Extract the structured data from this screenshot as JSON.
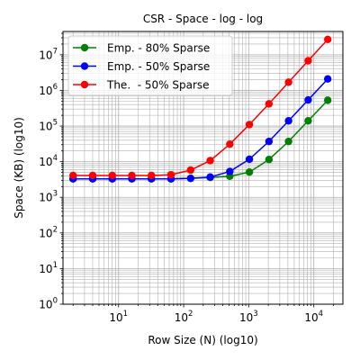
{
  "chart_data": {
    "type": "line",
    "title": "CSR - Space - log - log",
    "xlabel": "Row Size (N) (log10)",
    "ylabel": "Space (KB) (log10)",
    "xscale": "log",
    "yscale": "log",
    "xlim": [
      1.4,
      28000
    ],
    "ylim": [
      1,
      45000000
    ],
    "grid": true,
    "grid_minor": true,
    "legend_position": "upper-left",
    "x_ticks": [
      {
        "value": 10,
        "base": "10",
        "exp": "1"
      },
      {
        "value": 100,
        "base": "10",
        "exp": "2"
      },
      {
        "value": 1000,
        "base": "10",
        "exp": "3"
      },
      {
        "value": 10000,
        "base": "10",
        "exp": "4"
      }
    ],
    "y_ticks": [
      {
        "value": 1,
        "base": "10",
        "exp": "0"
      },
      {
        "value": 10,
        "base": "10",
        "exp": "1"
      },
      {
        "value": 100,
        "base": "10",
        "exp": "2"
      },
      {
        "value": 1000,
        "base": "10",
        "exp": "3"
      },
      {
        "value": 10000,
        "base": "10",
        "exp": "4"
      },
      {
        "value": 100000,
        "base": "10",
        "exp": "5"
      },
      {
        "value": 1000000,
        "base": "10",
        "exp": "6"
      },
      {
        "value": 10000000,
        "base": "10",
        "exp": "7"
      }
    ],
    "x": [
      2,
      4,
      8,
      16,
      32,
      64,
      128,
      256,
      512,
      1024,
      2048,
      4096,
      8192,
      16384
    ],
    "series": [
      {
        "name": "Emp. - 80% Sparse",
        "color": "#008000",
        "values": [
          3300,
          3300,
          3300,
          3300,
          3300,
          3300,
          3400,
          3600,
          3900,
          5100,
          11500,
          37000,
          140000,
          530000
        ]
      },
      {
        "name": "Emp. - 50% Sparse",
        "color": "#0000ff",
        "values": [
          3300,
          3300,
          3300,
          3300,
          3300,
          3300,
          3400,
          3700,
          5300,
          11700,
          37000,
          140000,
          540000,
          2100000
        ]
      },
      {
        "name": "The.  - 50% Sparse",
        "color": "#ff0000",
        "values": [
          4100,
          4100,
          4100,
          4100,
          4100,
          4300,
          5800,
          10700,
          31000,
          110000,
          420000,
          1700000,
          6800000,
          27000000
        ]
      }
    ]
  }
}
